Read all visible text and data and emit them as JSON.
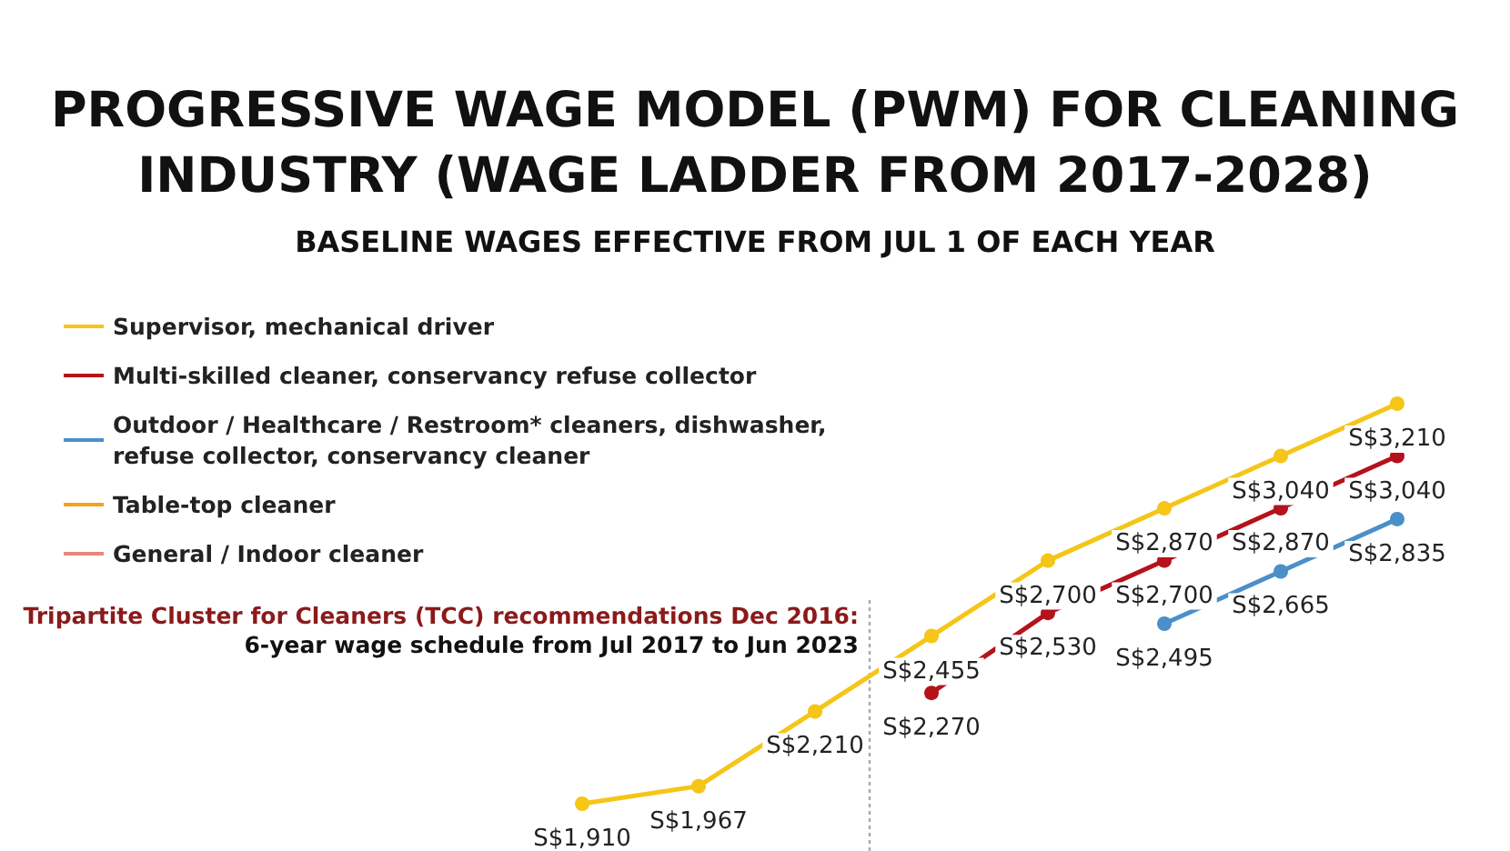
{
  "chart_data": {
    "type": "line",
    "title": "PROGRESSIVE WAGE MODEL (PWM) FOR CLEANING\nINDUSTRY (WAGE LADDER FROM 2017-2028)",
    "subtitle": "BASELINE WAGES EFFECTIVE FROM JUL 1 OF EACH YEAR",
    "annotations": [
      "Tripartite Cluster for Cleaners (TCC) recommendations Dec 2016:",
      "6-year wage schedule from Jul 2017 to Jun 2023"
    ],
    "categories": [
      null,
      null,
      null,
      null,
      null,
      null,
      null,
      null,
      null,
      null
    ],
    "series": [
      {
        "name": "Supervisor, mechanical driver",
        "color": "#f5c518",
        "values": [
          null,
          null,
          1910,
          1967,
          2210,
          2455,
          2700,
          2870,
          3040,
          3210
        ],
        "value_labels": [
          null,
          null,
          "S$1,910",
          "S$1,967",
          "S$2,210",
          "S$2,455",
          "S$2,700",
          "S$2,870",
          "S$3,040",
          "S$3,210"
        ]
      },
      {
        "name": "Multi-skilled cleaner, conservancy refuse collector",
        "color": "#b5121b",
        "values": [
          null,
          null,
          null,
          null,
          null,
          2270,
          2530,
          2700,
          2870,
          3040
        ],
        "value_labels": [
          null,
          null,
          null,
          null,
          null,
          "S$2,270",
          "S$2,530",
          "S$2,700",
          "S$2,870",
          "S$3,040"
        ]
      },
      {
        "name": "Outdoor / Healthcare / Restroom* cleaners, dishwasher,\nrefuse collector, conservancy cleaner",
        "color": "#4a8fc9",
        "values": [
          null,
          null,
          null,
          null,
          null,
          null,
          null,
          2495,
          2665,
          2835
        ],
        "value_labels": [
          null,
          null,
          null,
          null,
          null,
          null,
          null,
          "S$2,495",
          "S$2,665",
          "S$2,835"
        ]
      },
      {
        "name": "Table-top cleaner",
        "color": "#f7a21b",
        "values": [
          null,
          null,
          null,
          null,
          null,
          null,
          null,
          null,
          null,
          null
        ]
      },
      {
        "name": "General / Indoor cleaner",
        "color": "#e8877a",
        "values": [
          null,
          null,
          null,
          null,
          null,
          null,
          null,
          null,
          null,
          null
        ]
      }
    ],
    "legend": "top left",
    "marker": "circle",
    "line_style": "solid",
    "grid": false
  }
}
